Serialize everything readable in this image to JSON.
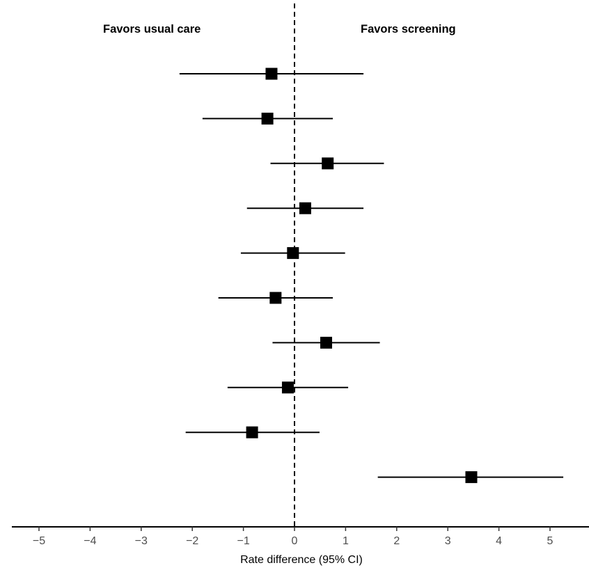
{
  "chart_data": {
    "type": "forest",
    "title": "",
    "xlabel": "Rate difference (95% CI)",
    "ylabel": "",
    "xlim": [
      -5.5,
      5.8
    ],
    "xticks": [
      -5,
      -4,
      -3,
      -2,
      -1,
      0,
      1,
      2,
      3,
      4,
      5
    ],
    "xtick_labels": [
      "−5",
      "−4",
      "−3",
      "−2",
      "−1",
      "0",
      "1",
      "2",
      "3",
      "4",
      "5"
    ],
    "reference_line": 0,
    "annotations": {
      "left": "Favors usual care",
      "right": "Favors screening"
    },
    "points": [
      {
        "estimate": -0.45,
        "lower": -2.25,
        "upper": 1.35
      },
      {
        "estimate": -0.53,
        "lower": -1.8,
        "upper": 0.75
      },
      {
        "estimate": 0.65,
        "lower": -0.47,
        "upper": 1.75
      },
      {
        "estimate": 0.21,
        "lower": -0.93,
        "upper": 1.35
      },
      {
        "estimate": -0.03,
        "lower": -1.05,
        "upper": 0.99
      },
      {
        "estimate": -0.37,
        "lower": -1.49,
        "upper": 0.75
      },
      {
        "estimate": 0.62,
        "lower": -0.43,
        "upper": 1.67
      },
      {
        "estimate": -0.13,
        "lower": -1.31,
        "upper": 1.05
      },
      {
        "estimate": -0.83,
        "lower": -2.13,
        "upper": 0.49
      },
      {
        "estimate": 3.46,
        "lower": 1.63,
        "upper": 5.26
      }
    ],
    "grid": false,
    "colors": {
      "marker": "#000000",
      "axis": "#000000",
      "tick_label": "#4d4d4d"
    }
  }
}
